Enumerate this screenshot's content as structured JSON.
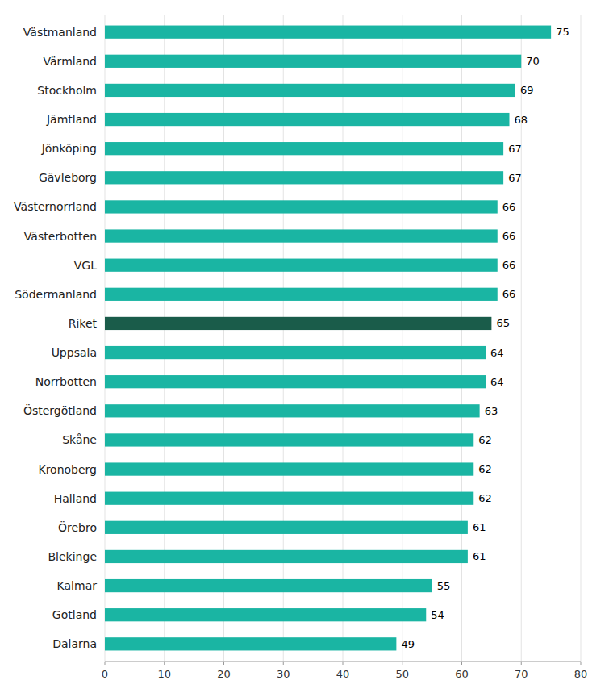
{
  "chart_data": {
    "type": "bar",
    "orientation": "horizontal",
    "categories": [
      "Dalarna",
      "Gotland",
      "Kalmar",
      "Blekinge",
      "Örebro",
      "Halland",
      "Kronoberg",
      "Skåne",
      "Östergötland",
      "Norrbotten",
      "Uppsala",
      "Riket",
      "Södermanland",
      "VGL",
      "Västerbotten",
      "Västernorrland",
      "Gävleborg",
      "Jönköping",
      "Jämtland",
      "Stockholm",
      "Värmland",
      "Västmanland"
    ],
    "values": [
      49,
      54,
      55,
      61,
      61,
      62,
      62,
      62,
      63,
      64,
      64,
      65,
      66,
      66,
      66,
      66,
      67,
      67,
      68,
      69,
      70,
      75
    ],
    "colors": [
      "#1ab5a3",
      "#1ab5a3",
      "#1ab5a3",
      "#1ab5a3",
      "#1ab5a3",
      "#1ab5a3",
      "#1ab5a3",
      "#1ab5a3",
      "#1ab5a3",
      "#1ab5a3",
      "#1ab5a3",
      "#1a5c4a",
      "#1ab5a3",
      "#1ab5a3",
      "#1ab5a3",
      "#1ab5a3",
      "#1ab5a3",
      "#1ab5a3",
      "#1ab5a3",
      "#1ab5a3",
      "#1ab5a3",
      "#1ab5a3"
    ],
    "xlim": [
      0,
      80
    ],
    "xticks": [
      0,
      10,
      20,
      30,
      40,
      50,
      60,
      70,
      80
    ],
    "grid": true,
    "data_labels": true
  }
}
